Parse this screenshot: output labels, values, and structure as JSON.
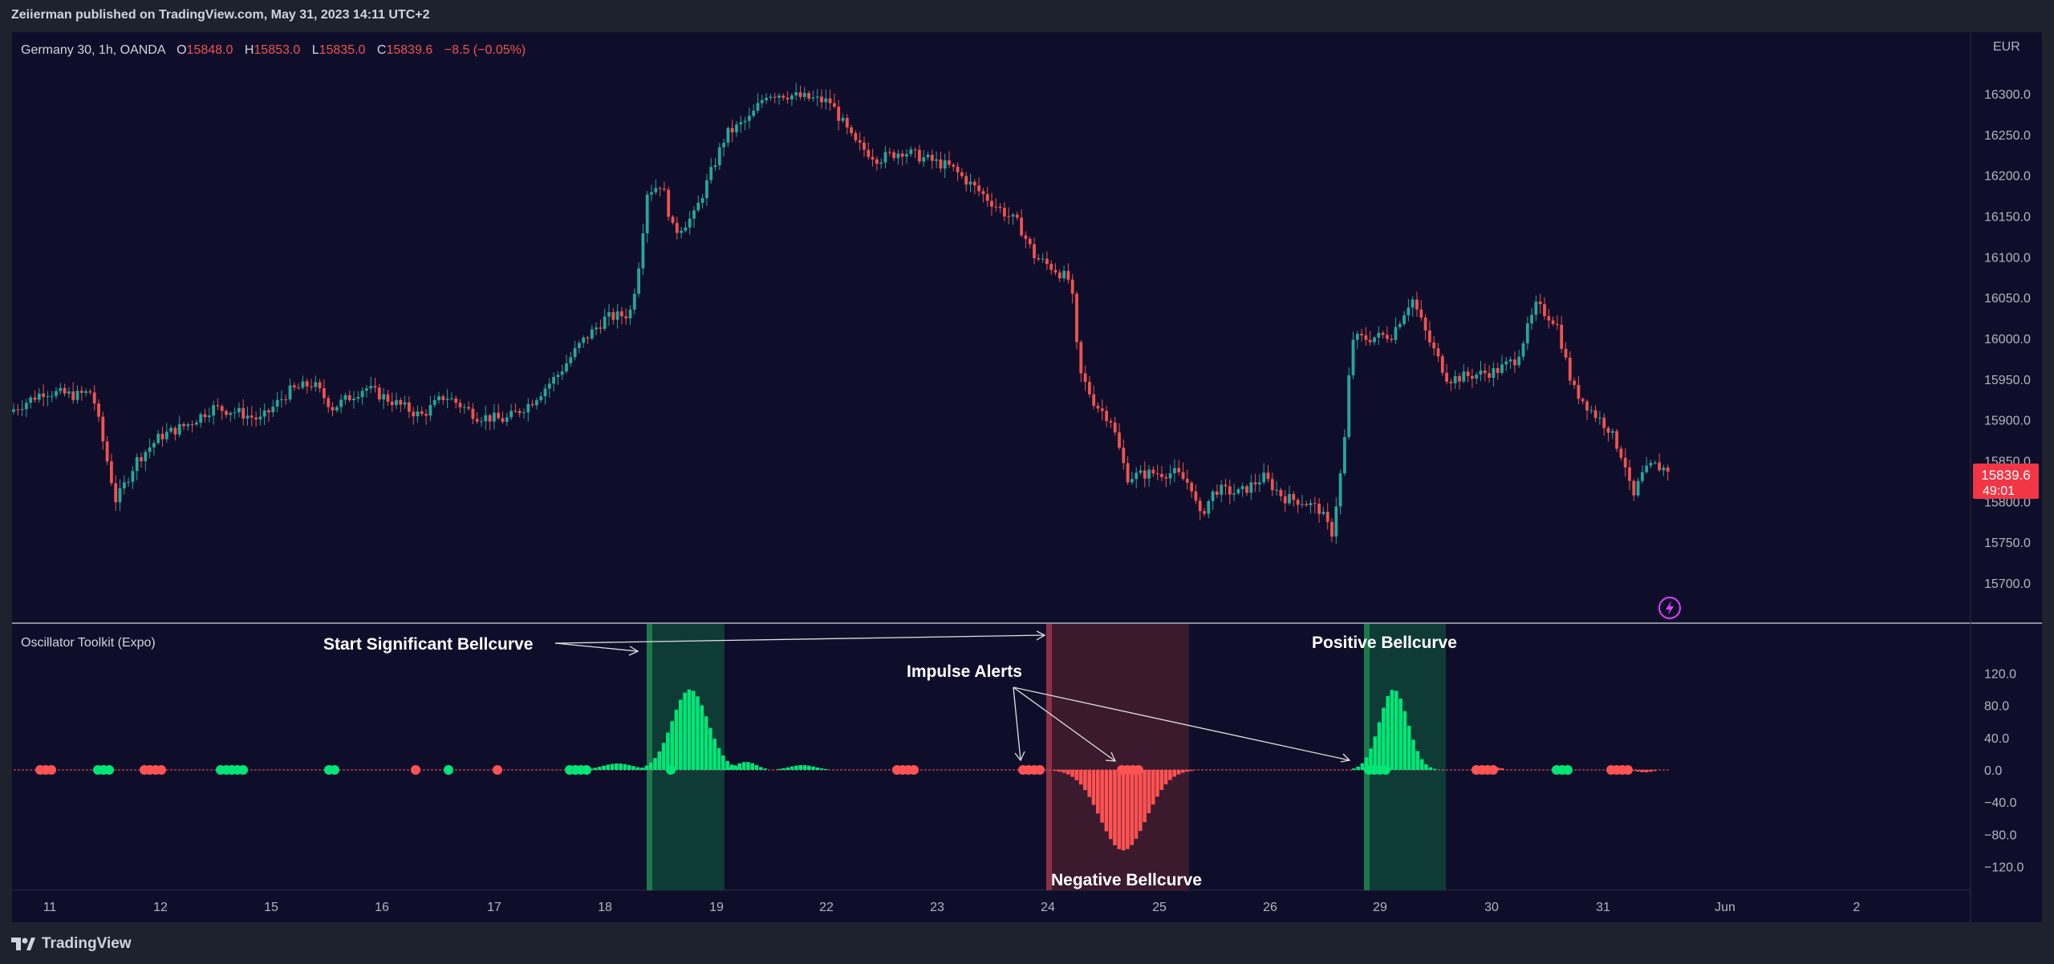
{
  "header": {
    "publisher": "Zeiierman published on TradingView.com, May 31, 2023 14:11 UTC+2"
  },
  "footer": {
    "brand": "TradingView"
  },
  "symbol": {
    "name": "Germany 30, 1h, OANDA",
    "open_label": "O",
    "open": "15848.0",
    "high_label": "H",
    "high": "15853.0",
    "low_label": "L",
    "low": "15835.0",
    "close_label": "C",
    "close": "15839.6",
    "change": "−8.5 (−0.05%)",
    "currency": "EUR",
    "last_price": "15839.6",
    "countdown": "49:01"
  },
  "indicator": {
    "name": "Oscillator Toolkit (Expo)"
  },
  "annotations": {
    "start": "Start Significant Bellcurve",
    "impulse": "Impulse Alerts",
    "positive": "Positive Bellcurve",
    "negative": "Negative Bellcurve"
  },
  "colors": {
    "background": "#0f0e2a",
    "bull": "#26a69a",
    "bear": "#ef5350",
    "osc_green": "#00e676",
    "osc_red": "#ff5252",
    "zone_green": "#0f3b37",
    "zone_red": "#3b1a2e"
  },
  "chart_data": [
    {
      "type": "candlestick",
      "title": "Germany 30, 1h, OANDA",
      "y_axis": {
        "ticks": [
          "16300.0",
          "16250.0",
          "16200.0",
          "16150.0",
          "16100.0",
          "16050.0",
          "16000.0",
          "15950.0",
          "15900.0",
          "15850.0",
          "15800.0",
          "15750.0",
          "15700.0"
        ],
        "range": [
          15680,
          16370
        ],
        "unit": "EUR"
      },
      "x_axis": {
        "ticks": [
          "11",
          "12",
          "15",
          "16",
          "17",
          "18",
          "19",
          "22",
          "23",
          "24",
          "25",
          "26",
          "29",
          "30",
          "31",
          "Jun",
          "2"
        ]
      },
      "close_path": [
        [
          "11",
          15910
        ],
        [
          "11 mid",
          15935
        ],
        [
          "12",
          15860
        ],
        [
          "12 mid",
          15895
        ],
        [
          "15",
          15910
        ],
        [
          "15 mid",
          15955
        ],
        [
          "16",
          15925
        ],
        [
          "16 mid",
          15930
        ],
        [
          "17",
          15900
        ],
        [
          "17 mid",
          15930
        ],
        [
          "18",
          16030
        ],
        [
          "18 late",
          16020
        ],
        [
          "18/19",
          16210
        ],
        [
          "19",
          16150
        ],
        [
          "19 mid",
          16260
        ],
        [
          "22",
          16310
        ],
        [
          "22 mid",
          16290
        ],
        [
          "23",
          16220
        ],
        [
          "23 mid",
          16200
        ],
        [
          "24",
          16060
        ],
        [
          "24 mid",
          15920
        ],
        [
          "25",
          15830
        ],
        [
          "25 mid",
          15820
        ],
        [
          "26",
          15800
        ],
        [
          "26 late",
          15780
        ],
        [
          "29",
          16000
        ],
        [
          "29 mid",
          16020
        ],
        [
          "30",
          15950
        ],
        [
          "30 mid",
          15970
        ],
        [
          "31",
          16040
        ],
        [
          "31 mid",
          15910
        ],
        [
          "31 late",
          15839.6
        ]
      ],
      "last_price": 15839.6
    },
    {
      "type": "bar",
      "title": "Oscillator Toolkit (Expo)",
      "y_axis": {
        "ticks": [
          "120.0",
          "80.0",
          "40.0",
          "0.0",
          "−40.0",
          "−80.0",
          "−120.0"
        ],
        "range": [
          -120,
          120
        ]
      },
      "bellcurves": [
        {
          "name": "Positive",
          "peak": 100,
          "location": "18–19"
        },
        {
          "name": "Negative",
          "peak": -100,
          "location": "24–25"
        },
        {
          "name": "Positive",
          "peak": 100,
          "location": "29"
        }
      ],
      "zones": [
        {
          "color": "green",
          "from": "18 late",
          "to": "19"
        },
        {
          "color": "red",
          "from": "24",
          "to": "25 late"
        },
        {
          "color": "green",
          "from": "29",
          "to": "29 late"
        }
      ]
    }
  ]
}
